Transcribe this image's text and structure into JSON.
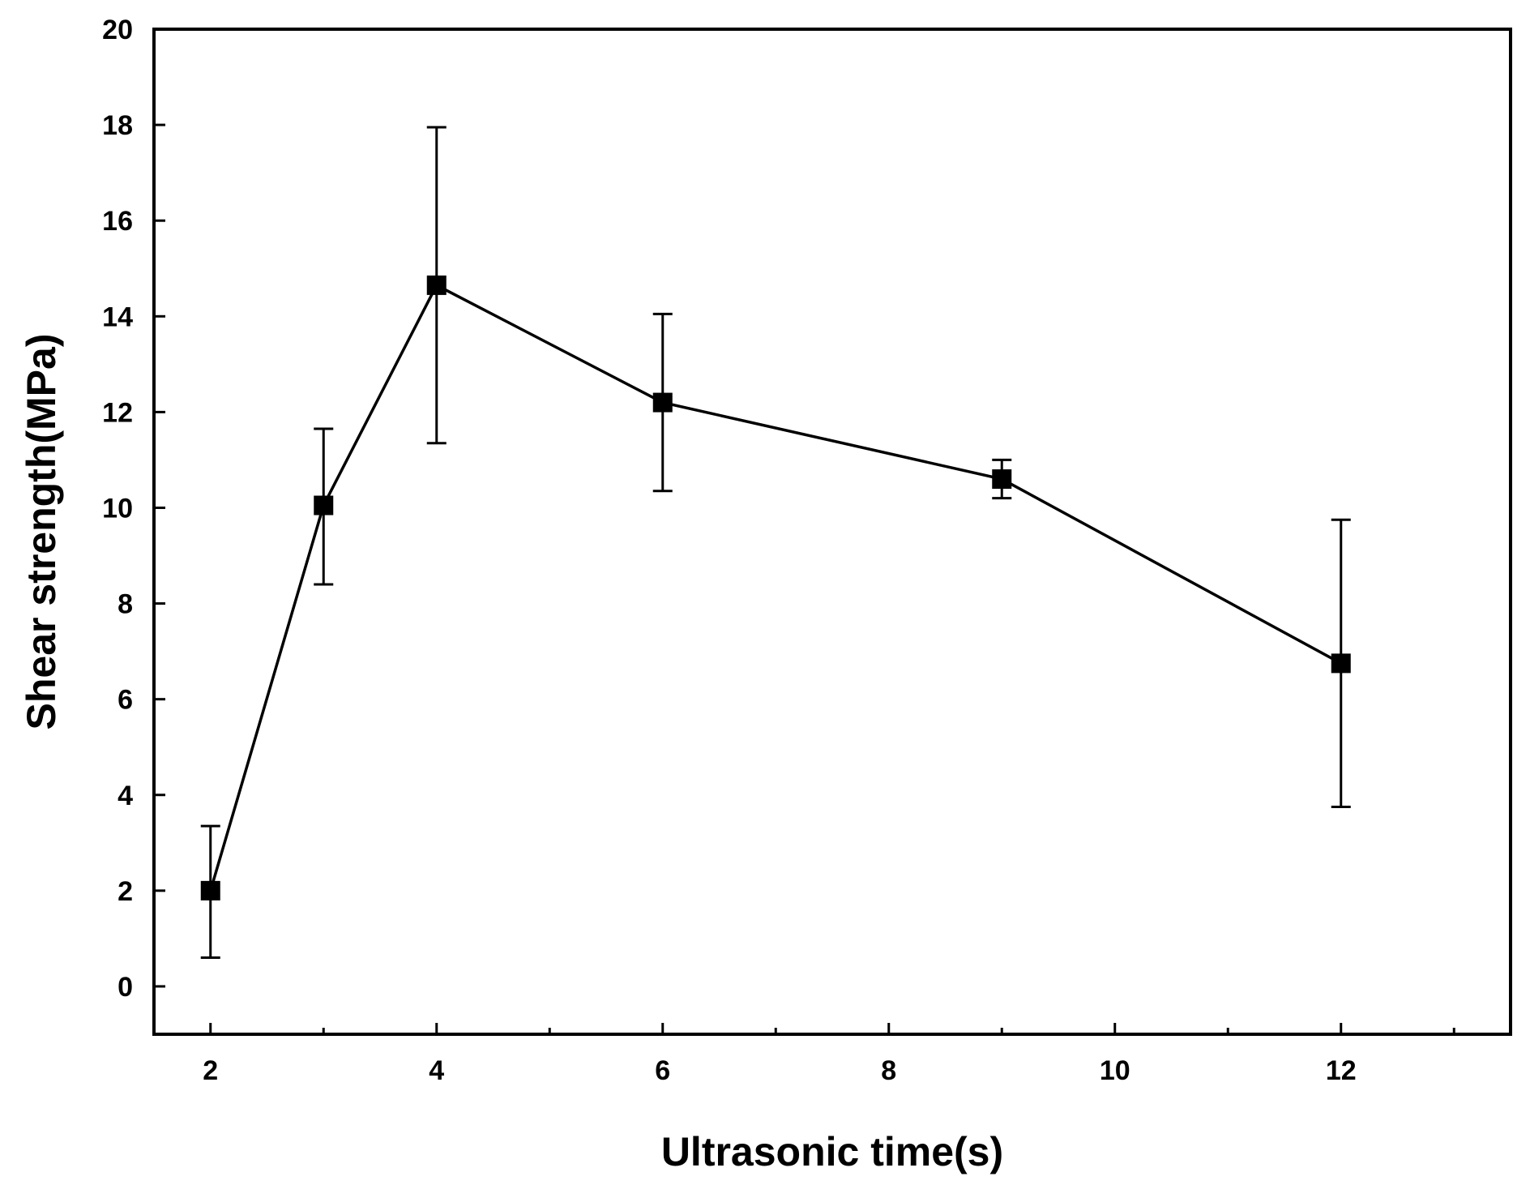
{
  "chart_data": {
    "type": "line",
    "title": "",
    "xlabel": "Ultrasonic time(s)",
    "ylabel": "Shear strength(MPa)",
    "xlim": [
      1.5,
      13.5
    ],
    "ylim": [
      -1,
      20
    ],
    "x_ticks": [
      2,
      4,
      6,
      8,
      10,
      12
    ],
    "x_minor_ticks": [
      3,
      5,
      7,
      9,
      11,
      13
    ],
    "y_ticks": [
      0,
      2,
      4,
      6,
      8,
      10,
      12,
      14,
      16,
      18,
      20
    ],
    "grid": false,
    "series": [
      {
        "name": "Shear strength",
        "marker": "square",
        "color": "#000000",
        "x": [
          2,
          3,
          4,
          6,
          9,
          12
        ],
        "y": [
          2.0,
          10.05,
          14.65,
          12.2,
          10.6,
          6.75
        ],
        "err_low": [
          0.6,
          8.4,
          11.35,
          10.35,
          10.2,
          3.75
        ],
        "err_high": [
          3.35,
          11.65,
          17.95,
          14.05,
          11.0,
          9.75
        ]
      }
    ]
  }
}
